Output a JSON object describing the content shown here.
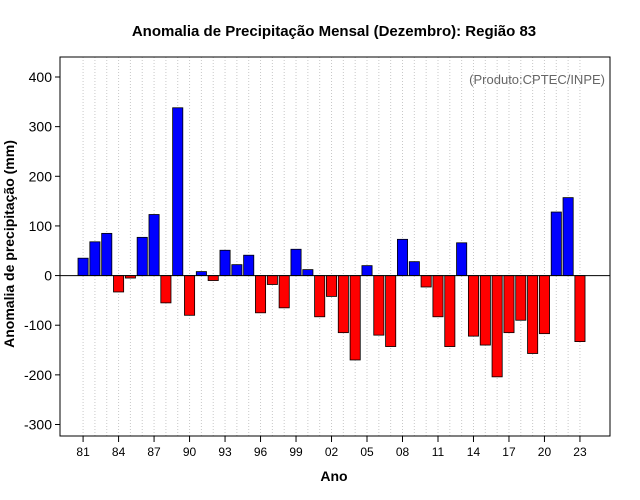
{
  "chart_data": {
    "type": "bar",
    "title": "Anomalia de Precipitação Mensal (Dezembro): Região 83",
    "xlabel": "Ano",
    "ylabel": "Anomalia de precipitação (mm)",
    "annotation": "(Produto:CPTEC/INPE)",
    "ylim": [
      -300,
      400
    ],
    "yticks": [
      -300,
      -200,
      -100,
      0,
      100,
      200,
      300,
      400
    ],
    "grid": "vertical-dotted",
    "positive_color": "#0000ff",
    "negative_color": "#ff0000",
    "x_tick_labels": [
      "81",
      "84",
      "87",
      "90",
      "93",
      "96",
      "99",
      "02",
      "05",
      "08",
      "11",
      "14",
      "17",
      "20",
      "23"
    ],
    "categories": [
      "1981",
      "1982",
      "1983",
      "1984",
      "1985",
      "1986",
      "1987",
      "1988",
      "1989",
      "1990",
      "1991",
      "1992",
      "1993",
      "1994",
      "1995",
      "1996",
      "1997",
      "1998",
      "1999",
      "2000",
      "2001",
      "2002",
      "2003",
      "2004",
      "2005",
      "2006",
      "2007",
      "2008",
      "2009",
      "2010",
      "2011",
      "2012",
      "2013",
      "2014",
      "2015",
      "2016",
      "2017",
      "2018",
      "2019",
      "2020",
      "2021",
      "2022",
      "2023"
    ],
    "values": [
      35,
      68,
      85,
      -33,
      -5,
      77,
      123,
      -55,
      338,
      -80,
      8,
      -10,
      51,
      22,
      41,
      -75,
      -18,
      -65,
      53,
      12,
      -83,
      -42,
      -115,
      -170,
      20,
      -120,
      -143,
      73,
      28,
      -23,
      -83,
      -143,
      66,
      -122,
      -140,
      -204,
      -115,
      -90,
      -157,
      -117,
      128,
      157,
      -133
    ]
  }
}
